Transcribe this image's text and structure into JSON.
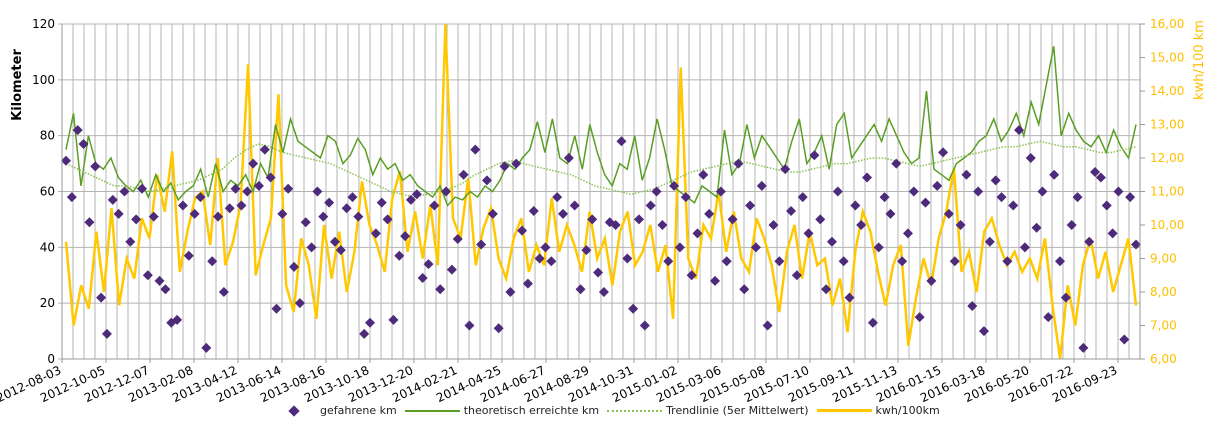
{
  "chart_data": {
    "type": "line",
    "title": "",
    "ylabel": "Kilometer",
    "y2label": "kwh/100 km",
    "ylim": [
      0,
      120
    ],
    "y2lim": [
      6,
      16
    ],
    "yticks": [
      "0",
      "20",
      "40",
      "60",
      "80",
      "100",
      "120"
    ],
    "y2ticks": [
      "6,00",
      "7,00",
      "8,00",
      "9,00",
      "10,00",
      "11,00",
      "12,00",
      "13,00",
      "14,00",
      "15,00",
      "16,00"
    ],
    "xticks": [
      "2012-08-03",
      "2012-10-05",
      "2012-12-07",
      "2013-02-08",
      "2013-04-12",
      "2013-06-14",
      "2013-08-16",
      "2013-10-18",
      "2013-12-20",
      "2014-02-21",
      "2014-04-25",
      "2014-06-27",
      "2014-08-29",
      "2014-10-31",
      "2015-01-02",
      "2015-03-06",
      "2015-05-08",
      "2015-07-10",
      "2015-09-11",
      "2015-11-13",
      "2016-01-15",
      "2016-03-18",
      "2016-05-20",
      "2016-07-22",
      "2016-09-23"
    ],
    "grid": true,
    "legend_position": "bottom",
    "series": [
      {
        "name": "gefahrene km",
        "kind": "scatter",
        "axis": "left",
        "color": "#4e2a7a",
        "values": [
          71,
          58,
          82,
          77,
          49,
          69,
          22,
          9,
          57,
          52,
          60,
          42,
          50,
          61,
          30,
          51,
          28,
          25,
          13,
          14,
          55,
          37,
          52,
          58,
          4,
          35,
          51,
          24,
          54,
          61,
          55,
          60,
          70,
          62,
          75,
          65,
          18,
          52,
          61,
          33,
          20,
          49,
          40,
          60,
          51,
          56,
          42,
          39,
          54,
          58,
          51,
          9,
          13,
          45,
          56,
          50,
          14,
          37,
          44,
          57,
          59,
          29,
          34,
          55,
          25,
          60,
          32,
          43,
          66,
          12,
          75,
          41,
          64,
          52,
          11,
          69,
          24,
          70,
          46,
          27,
          53,
          36,
          40,
          35,
          58,
          52,
          72,
          55,
          25,
          39,
          50,
          31,
          24,
          49,
          48,
          78,
          36,
          18,
          50,
          12,
          55,
          60,
          48,
          35,
          62,
          40,
          58,
          30,
          45,
          66,
          52,
          28,
          60,
          35,
          50,
          70,
          25,
          55,
          40,
          62,
          12,
          48,
          35,
          68,
          53,
          30,
          58,
          45,
          73,
          50,
          25,
          42,
          60,
          35,
          22,
          55,
          48,
          65,
          13,
          40,
          58,
          52,
          70,
          35,
          45,
          60,
          15,
          56,
          28,
          62,
          74,
          52,
          35,
          48,
          66,
          19,
          60,
          10,
          42,
          64,
          58,
          35,
          55,
          82,
          40,
          72,
          47,
          60,
          15,
          66,
          35,
          22,
          48,
          58,
          4,
          42,
          67,
          65,
          55,
          45,
          60,
          7,
          58,
          41
        ]
      },
      {
        "name": "theoretisch erreichte km",
        "kind": "line",
        "axis": "left",
        "color": "#5a9e23",
        "values": [
          75,
          88,
          62,
          80,
          70,
          68,
          72,
          65,
          62,
          60,
          64,
          58,
          66,
          60,
          63,
          57,
          60,
          62,
          68,
          58,
          70,
          60,
          64,
          62,
          66,
          60,
          70,
          65,
          84,
          74,
          86,
          78,
          76,
          74,
          72,
          80,
          78,
          70,
          73,
          79,
          75,
          66,
          72,
          68,
          70,
          64,
          66,
          62,
          60,
          58,
          62,
          55,
          58,
          57,
          60,
          58,
          62,
          60,
          64,
          70,
          68,
          72,
          75,
          85,
          74,
          86,
          72,
          70,
          80,
          68,
          84,
          74,
          66,
          62,
          70,
          68,
          80,
          64,
          72,
          86,
          75,
          62,
          60,
          58,
          56,
          62,
          60,
          58,
          82,
          66,
          70,
          84,
          72,
          80,
          76,
          72,
          68,
          78,
          86,
          70,
          74,
          80,
          68,
          84,
          88,
          72,
          76,
          80,
          84,
          78,
          86,
          80,
          74,
          70,
          72,
          96,
          68,
          66,
          64,
          70,
          72,
          74,
          78,
          80,
          86,
          78,
          82,
          88,
          80,
          92,
          84,
          98,
          112,
          80,
          88,
          82,
          78,
          76,
          80,
          74,
          82,
          76,
          72,
          84
        ]
      },
      {
        "name": "Trendlinie (5er Mittelwert)",
        "kind": "line-dotted",
        "axis": "left",
        "color": "#8cc152",
        "values": [
          70,
          68,
          66,
          64,
          62,
          62,
          61,
          60,
          61,
          62,
          63,
          64,
          66,
          68,
          72,
          75,
          77,
          76,
          74,
          73,
          72,
          71,
          70,
          68,
          66,
          64,
          62,
          60,
          59,
          58,
          59,
          60,
          61,
          63,
          66,
          68,
          70,
          71,
          70,
          69,
          68,
          67,
          66,
          64,
          62,
          61,
          60,
          59,
          60,
          61,
          63,
          65,
          67,
          68,
          69,
          70,
          71,
          70,
          69,
          68,
          67,
          67,
          68,
          69,
          70,
          70,
          71,
          72,
          72,
          71,
          70,
          69,
          70,
          71,
          72,
          73,
          74,
          75,
          76,
          76,
          77,
          78,
          77,
          76,
          76,
          75,
          74,
          74,
          75,
          76
        ]
      },
      {
        "name": "kwh/100km",
        "kind": "line",
        "axis": "right",
        "color": "#ffc800",
        "values": [
          9.5,
          7.0,
          8.2,
          7.5,
          9.8,
          8.0,
          10.5,
          7.6,
          9.0,
          8.4,
          10.2,
          9.6,
          11.5,
          10.4,
          12.2,
          8.6,
          9.8,
          10.8,
          11.0,
          9.4,
          12.0,
          8.8,
          9.5,
          10.6,
          14.8,
          8.5,
          9.4,
          10.2,
          13.9,
          8.2,
          7.4,
          9.6,
          8.8,
          7.2,
          10.0,
          8.4,
          9.8,
          8.0,
          9.2,
          11.3,
          10.0,
          9.4,
          8.6,
          10.8,
          11.6,
          9.2,
          10.4,
          9.0,
          10.6,
          8.8,
          16.0,
          10.2,
          9.6,
          11.4,
          8.8,
          9.9,
          10.5,
          9.0,
          8.4,
          9.6,
          10.2,
          8.6,
          9.4,
          8.8,
          10.8,
          9.2,
          10.0,
          9.4,
          8.6,
          10.4,
          9.0,
          9.6,
          8.2,
          9.8,
          10.4,
          8.8,
          9.2,
          10.0,
          8.6,
          9.4,
          7.2,
          14.7,
          9.0,
          8.4,
          10.0,
          9.6,
          11.0,
          9.2,
          10.4,
          9.0,
          8.6,
          10.2,
          9.6,
          8.8,
          7.4,
          9.2,
          10.0,
          8.4,
          9.8,
          8.8,
          9.0,
          7.6,
          8.4,
          6.8,
          9.2,
          10.4,
          9.8,
          8.6,
          7.6,
          8.8,
          9.4,
          6.4,
          7.8,
          9.0,
          8.2,
          9.6,
          10.4,
          11.7,
          8.6,
          9.2,
          8.0,
          9.8,
          10.2,
          9.4,
          8.8,
          9.2,
          8.6,
          9.0,
          8.4,
          9.6,
          7.6,
          6.0,
          8.2,
          7.0,
          8.8,
          9.6,
          8.4,
          9.2,
          8.0,
          8.8,
          9.6,
          7.6
        ]
      }
    ]
  }
}
